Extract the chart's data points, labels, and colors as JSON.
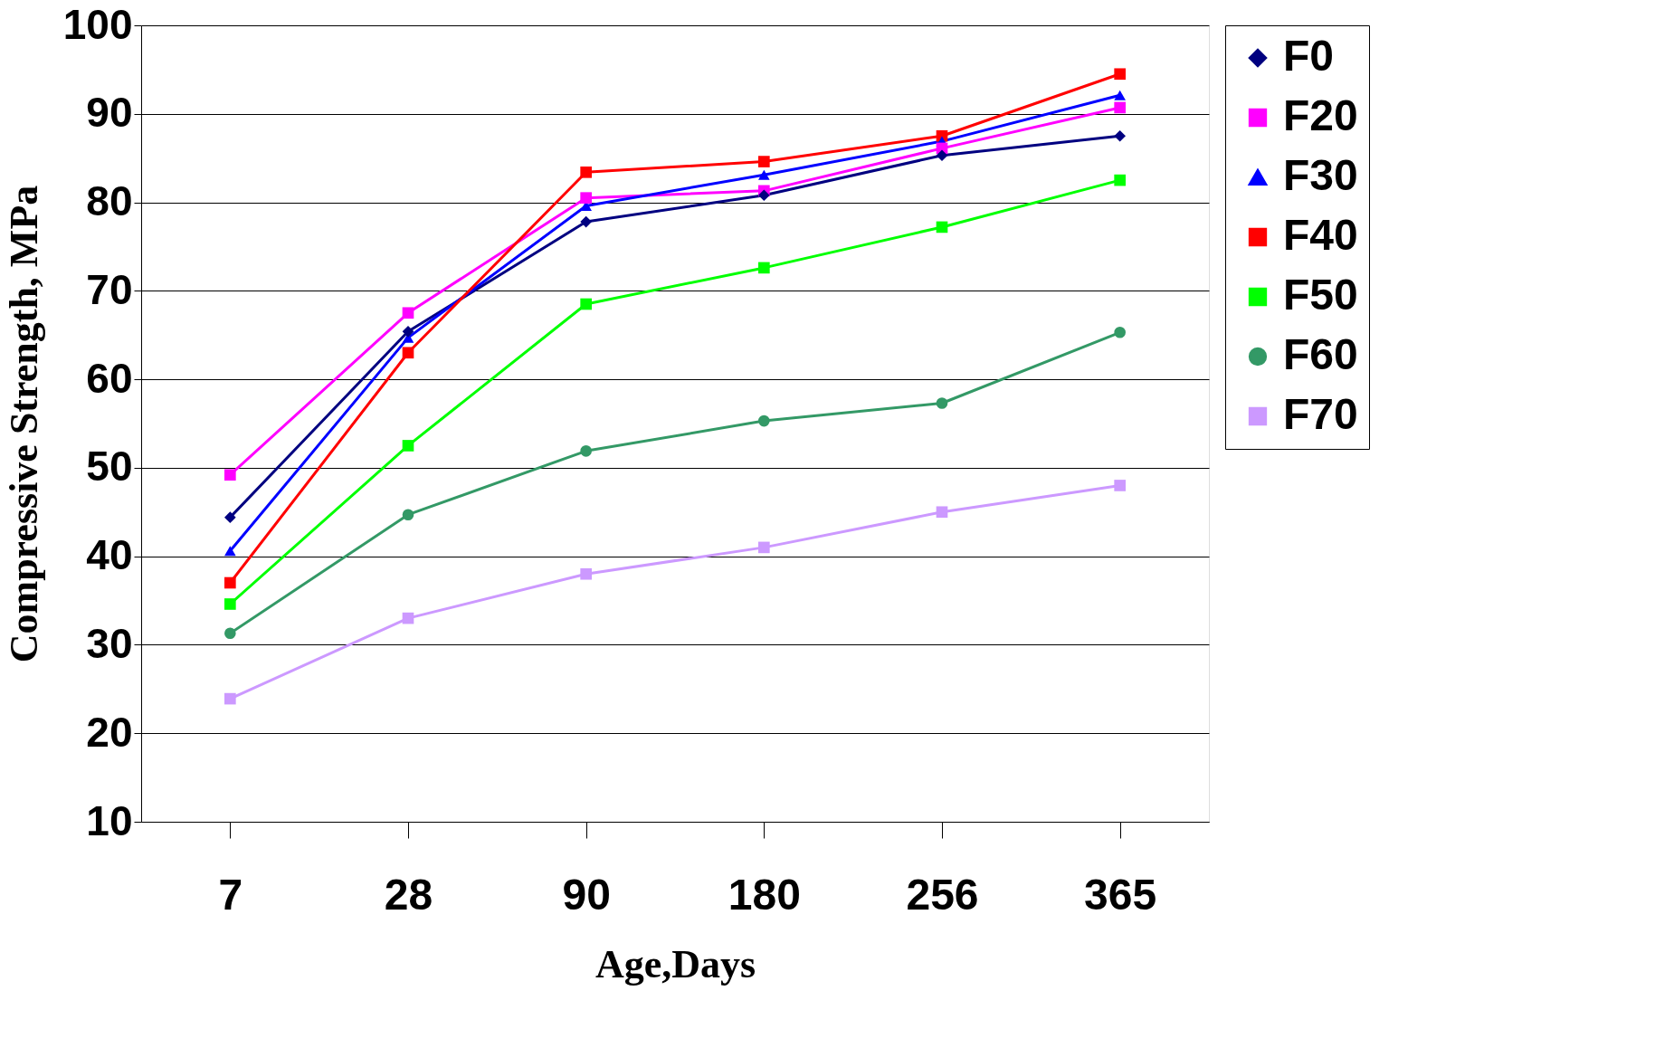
{
  "chart_data": {
    "type": "line",
    "xlabel": "Age,Days",
    "ylabel": "Compressive Strength, MPa",
    "categories": [
      "7",
      "28",
      "90",
      "180",
      "256",
      "365"
    ],
    "ylim": [
      10,
      100
    ],
    "yticks": [
      10,
      20,
      30,
      40,
      50,
      60,
      70,
      80,
      90,
      100
    ],
    "grid": "y",
    "legend": "right",
    "series": [
      {
        "name": "F0",
        "color": "#000080",
        "marker": "diamond",
        "values": [
          44.4,
          65.4,
          77.8,
          80.8,
          85.3,
          87.5
        ]
      },
      {
        "name": "F20",
        "color": "#ff00ff",
        "marker": "square",
        "values": [
          49.2,
          67.5,
          80.5,
          81.3,
          86.1,
          90.7
        ]
      },
      {
        "name": "F30",
        "color": "#0000ff",
        "marker": "triangle",
        "values": [
          40.6,
          64.7,
          79.6,
          83.1,
          86.9,
          92.1
        ]
      },
      {
        "name": "F40",
        "color": "#ff0000",
        "marker": "square",
        "values": [
          37,
          63,
          83.4,
          84.6,
          87.5,
          94.5
        ]
      },
      {
        "name": "F50",
        "color": "#00ff00",
        "marker": "square",
        "values": [
          34.6,
          52.5,
          68.5,
          72.6,
          77.2,
          82.5
        ]
      },
      {
        "name": "F60",
        "color": "#339966",
        "marker": "circle",
        "values": [
          31.3,
          44.7,
          51.9,
          55.3,
          57.3,
          65.3
        ]
      },
      {
        "name": "F70",
        "color": "#cc99ff",
        "marker": "square",
        "values": [
          23.9,
          33,
          38,
          41,
          45,
          48
        ]
      }
    ]
  }
}
